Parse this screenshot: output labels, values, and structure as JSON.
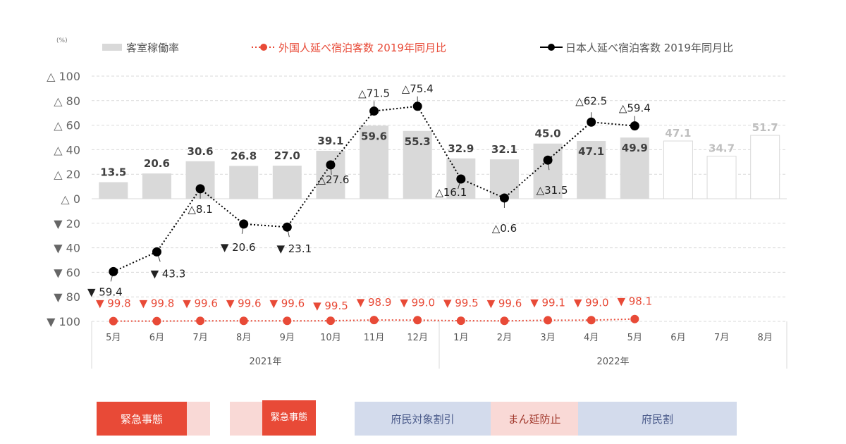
{
  "chart_data": {
    "type": "bar+line",
    "unit_label": "(%)",
    "y_axis": {
      "range": [
        -100,
        100
      ],
      "ticks": [
        {
          "value": 100,
          "label": "△ 100"
        },
        {
          "value": 80,
          "label": "△ 80"
        },
        {
          "value": 60,
          "label": "△ 60"
        },
        {
          "value": 40,
          "label": "△ 40"
        },
        {
          "value": 20,
          "label": "△ 20"
        },
        {
          "value": 0,
          "label": "△ 0"
        },
        {
          "value": -20,
          "label": "▼ 20"
        },
        {
          "value": -40,
          "label": "▼ 40"
        },
        {
          "value": -60,
          "label": "▼ 60"
        },
        {
          "value": -80,
          "label": "▼ 80"
        },
        {
          "value": -100,
          "label": "▼ 100"
        }
      ],
      "grid": true
    },
    "categories": [
      "5月",
      "6月",
      "7月",
      "8月",
      "9月",
      "10月",
      "11月",
      "12月",
      "1月",
      "2月",
      "3月",
      "4月",
      "5月",
      "6月",
      "7月",
      "8月"
    ],
    "year_groups": [
      {
        "label": "2021年",
        "start": 0,
        "end": 7
      },
      {
        "label": "2022年",
        "start": 8,
        "end": 15
      }
    ],
    "legend": [
      {
        "key": "occupancy",
        "label": "客室稼働率",
        "color": "#d9d9d9"
      },
      {
        "key": "foreign",
        "label": "外国人延べ宿泊客数 2019年同月比",
        "color": "#e84a37"
      },
      {
        "key": "japanese",
        "label": "日本人延べ宿泊客数 2019年同月比",
        "color": "#000000"
      }
    ],
    "series": [
      {
        "name": "客室稼働率",
        "type": "bar",
        "values": [
          13.5,
          20.6,
          30.6,
          26.8,
          27.0,
          39.1,
          59.6,
          55.3,
          32.9,
          32.1,
          45.0,
          47.1,
          49.9,
          47.1,
          34.7,
          51.7
        ],
        "labels": [
          "13.5",
          "20.6",
          "30.6",
          "26.8",
          "27.0",
          "39.1",
          "59.6",
          "55.3",
          "32.9",
          "32.1",
          "45.0",
          "47.1",
          "49.9",
          "47.1",
          "34.7",
          "51.7"
        ],
        "forecast_from_index": 13,
        "color": "#d9d9d9"
      },
      {
        "name": "外国人延べ宿泊客数 2019年同月比",
        "type": "line",
        "values": [
          -99.8,
          -99.8,
          -99.6,
          -99.6,
          -99.6,
          -99.5,
          -98.9,
          -99.0,
          -99.5,
          -99.6,
          -99.1,
          -99.0,
          -98.1
        ],
        "labels": [
          "▼ 99.8",
          "▼ 99.8",
          "▼ 99.6",
          "▼ 99.6",
          "▼ 99.6",
          "▼ 99.5",
          "▼ 98.9",
          "▼ 99.0",
          "▼ 99.5",
          "▼ 99.6",
          "▼ 99.1",
          "▼ 99.0",
          "▼ 98.1"
        ],
        "color": "#e84a37"
      },
      {
        "name": "日本人延べ宿泊客数 2019年同月比",
        "type": "line",
        "values": [
          -59.4,
          -43.3,
          8.1,
          -20.6,
          -23.1,
          27.6,
          71.5,
          75.4,
          16.1,
          0.6,
          31.5,
          62.5,
          59.4
        ],
        "labels": [
          "▼ 59.4",
          "▼ 43.3",
          "△8.1",
          "▼ 20.6",
          "▼ 23.1",
          "△27.6",
          "△71.5",
          "△75.4",
          "△16.1",
          "△0.6",
          "△31.5",
          "△62.5",
          "△59.4"
        ],
        "color": "#000000"
      }
    ]
  },
  "phases": [
    {
      "label": "緊急事態",
      "kind": "emergency"
    },
    {
      "label": "",
      "kind": "light"
    },
    {
      "label": "",
      "kind": "light"
    },
    {
      "label": "緊急事態",
      "kind": "emergency"
    },
    {
      "label": "府民対象割引",
      "kind": "discount"
    },
    {
      "label": "まん延防止",
      "kind": "light"
    },
    {
      "label": "府民割",
      "kind": "discount"
    }
  ],
  "colors": {
    "bar": "#d9d9d9",
    "bar_forecast_border": "#d9d9d9",
    "foreign": "#e84a37",
    "japanese": "#000000",
    "emergency": "#e84a37",
    "light_pink": "#f9d9d6",
    "discount": "#d3dbec",
    "axis_text": "#666666"
  }
}
